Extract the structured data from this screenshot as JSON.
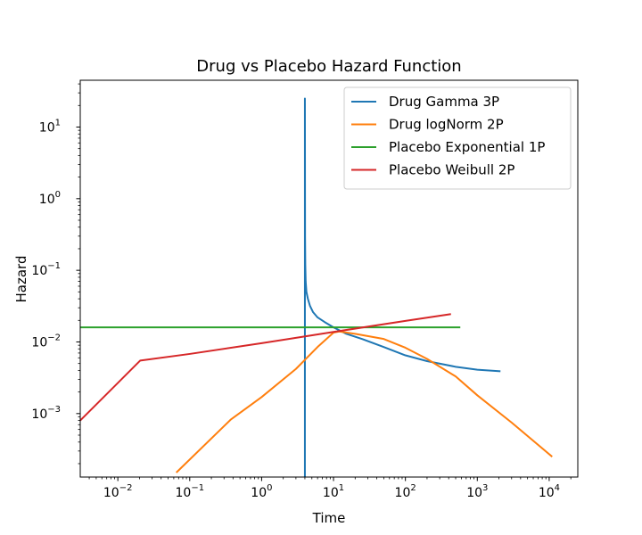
{
  "chart_data": {
    "type": "line",
    "title": "Drug vs Placebo Hazard Function",
    "xlabel": "Time",
    "ylabel": "Hazard",
    "xscale": "log",
    "yscale": "log",
    "xlim": [
      0.003,
      25000
    ],
    "ylim": [
      0.00013,
      45
    ],
    "x_ticks": [
      {
        "value": 0.01,
        "base": "10",
        "exp": "−2"
      },
      {
        "value": 0.1,
        "base": "10",
        "exp": "−1"
      },
      {
        "value": 1,
        "base": "10",
        "exp": "0"
      },
      {
        "value": 10,
        "base": "10",
        "exp": "1"
      },
      {
        "value": 100,
        "base": "10",
        "exp": "2"
      },
      {
        "value": 1000,
        "base": "10",
        "exp": "3"
      },
      {
        "value": 10000,
        "base": "10",
        "exp": "4"
      }
    ],
    "y_ticks": [
      {
        "value": 0.001,
        "base": "10",
        "exp": "−3"
      },
      {
        "value": 0.01,
        "base": "10",
        "exp": "−2"
      },
      {
        "value": 0.1,
        "base": "10",
        "exp": "−1"
      },
      {
        "value": 1,
        "base": "10",
        "exp": "0"
      },
      {
        "value": 10,
        "base": "10",
        "exp": "1"
      }
    ],
    "grid": false,
    "legend": {
      "placement": "top-right"
    },
    "series": [
      {
        "name": "Drug Gamma 3P",
        "color": "#1f77b4",
        "x": [
          4.0,
          4.0,
          4.02,
          4.05,
          4.1,
          4.2,
          4.4,
          4.7,
          5.2,
          6.0,
          7.5,
          10,
          15,
          25,
          50,
          100,
          200,
          500,
          1000,
          2100
        ],
        "y": [
          0.00013,
          25,
          0.3,
          0.12,
          0.07,
          0.05,
          0.04,
          0.032,
          0.026,
          0.022,
          0.019,
          0.016,
          0.013,
          0.011,
          0.0085,
          0.0065,
          0.0054,
          0.0045,
          0.0041,
          0.0039
        ]
      },
      {
        "name": "Drug logNorm 2P",
        "color": "#ff7f0e",
        "x": [
          0.065,
          0.37,
          1,
          3,
          6,
          10,
          12,
          20,
          50,
          100,
          200,
          500,
          1000,
          3000,
          11000
        ],
        "y": [
          0.00015,
          0.00082,
          0.0017,
          0.0042,
          0.0085,
          0.0135,
          0.014,
          0.013,
          0.011,
          0.0083,
          0.0058,
          0.0033,
          0.0018,
          0.00075,
          0.00025
        ]
      },
      {
        "name": "Placebo Exponential 1P",
        "color": "#2ca02c",
        "x": [
          0.003,
          580
        ],
        "y": [
          0.016,
          0.016
        ]
      },
      {
        "name": "Placebo Weibull 2P",
        "color": "#d62728",
        "x": [
          0.003,
          0.0205,
          0.1,
          1,
          10,
          100,
          430
        ],
        "y": [
          0.0008,
          0.0055,
          0.0068,
          0.0096,
          0.0138,
          0.0197,
          0.0245
        ]
      }
    ]
  }
}
